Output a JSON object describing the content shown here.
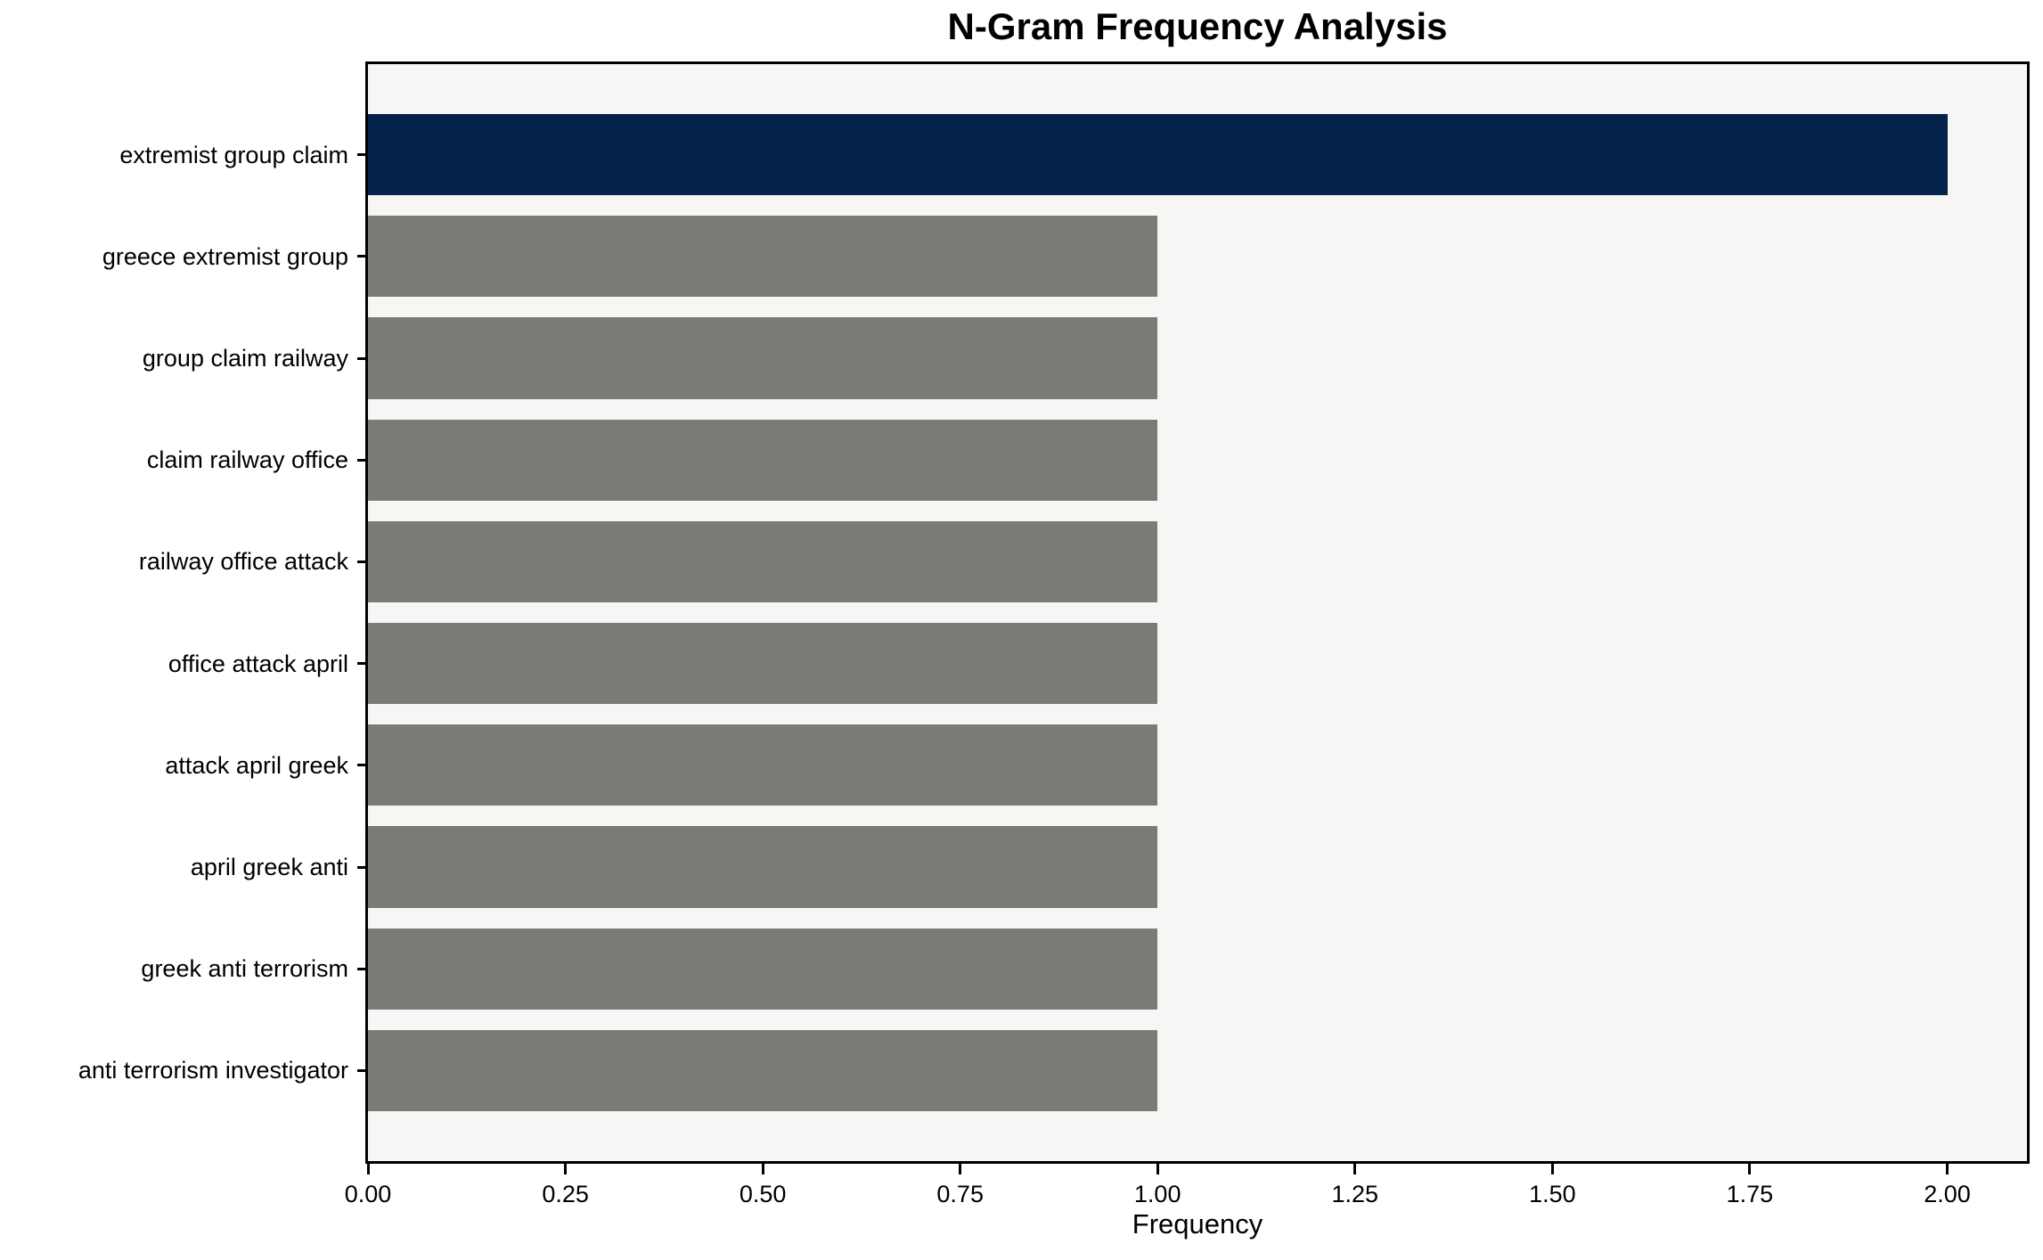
{
  "chart_data": {
    "type": "bar",
    "orientation": "horizontal",
    "title": "N-Gram Frequency Analysis",
    "xlabel": "Frequency",
    "ylabel": "",
    "categories": [
      "extremist group claim",
      "greece extremist group",
      "group claim railway",
      "claim railway office",
      "railway office attack",
      "office attack april",
      "attack april greek",
      "april greek anti",
      "greek anti terrorism",
      "anti terrorism investigator"
    ],
    "values": [
      2,
      1,
      1,
      1,
      1,
      1,
      1,
      1,
      1,
      1
    ],
    "highlight_index": 0,
    "bar_colors": {
      "highlight": "#03234a",
      "default": "#7b7a76"
    },
    "x_tick_labels": [
      "0.00",
      "0.25",
      "0.50",
      "0.75",
      "1.00",
      "1.25",
      "1.50",
      "1.75",
      "2.00"
    ],
    "x_tick_values": [
      0,
      0.25,
      0.5,
      0.75,
      1.0,
      1.25,
      1.5,
      1.75,
      2.0
    ],
    "xlim": [
      0,
      2.101
    ],
    "plot_bg": "#f7f6f5",
    "spine_color": "#000000",
    "grid": false,
    "legend": null
  }
}
